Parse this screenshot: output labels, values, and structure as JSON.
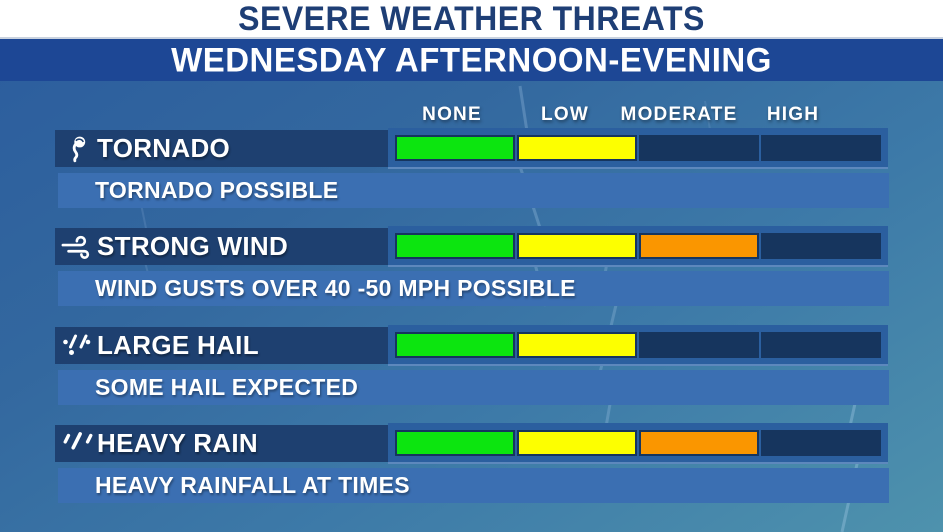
{
  "header": {
    "title": "SEVERE WEATHER THREATS",
    "subtitle": "WEDNESDAY AFTERNOON-EVENING"
  },
  "scale": {
    "labels": [
      "NONE",
      "LOW",
      "MODERATE",
      "HIGH"
    ]
  },
  "colors": {
    "fill": [
      "#0ce50f",
      "#fdff00",
      "#fa9600",
      "#e02020"
    ],
    "empty": "#16355e",
    "frame": "#2b5f9f",
    "label_band": "#1e4070",
    "description_band": "#3b6fb2",
    "header_band": "#1d4795",
    "header_text": "#1e3e75"
  },
  "rows": [
    {
      "id": "tornado",
      "icon": "tornado-icon",
      "label": "TORNADO",
      "description": "TORNADO POSSIBLE",
      "level": "LOW",
      "filled_segments": 2
    },
    {
      "id": "strong-wind",
      "icon": "wind-icon",
      "label": "STRONG WIND",
      "description": "WIND GUSTS OVER 40 -50 MPH POSSIBLE",
      "level": "MODERATE",
      "filled_segments": 3
    },
    {
      "id": "large-hail",
      "icon": "hail-icon",
      "label": "LARGE HAIL",
      "description": "SOME HAIL EXPECTED",
      "level": "LOW",
      "filled_segments": 2
    },
    {
      "id": "heavy-rain",
      "icon": "rain-icon",
      "label": "HEAVY RAIN",
      "description": "HEAVY RAINFALL AT TIMES",
      "level": "MODERATE",
      "filled_segments": 3
    }
  ],
  "chart_data": {
    "type": "bar",
    "title": "SEVERE WEATHER THREATS",
    "subtitle": "WEDNESDAY AFTERNOON-EVENING",
    "categories": [
      "TORNADO",
      "STRONG WIND",
      "LARGE HAIL",
      "HEAVY RAIN"
    ],
    "scale": [
      "NONE",
      "LOW",
      "MODERATE",
      "HIGH"
    ],
    "values": [
      {
        "category": "TORNADO",
        "level": "LOW",
        "note": "TORNADO POSSIBLE"
      },
      {
        "category": "STRONG WIND",
        "level": "MODERATE",
        "note": "WIND GUSTS OVER 40 -50 MPH POSSIBLE"
      },
      {
        "category": "LARGE HAIL",
        "level": "LOW",
        "note": "SOME HAIL EXPECTED"
      },
      {
        "category": "HEAVY RAIN",
        "level": "MODERATE",
        "note": "HEAVY RAINFALL AT TIMES"
      }
    ],
    "legend_position": "top",
    "grid": false
  }
}
